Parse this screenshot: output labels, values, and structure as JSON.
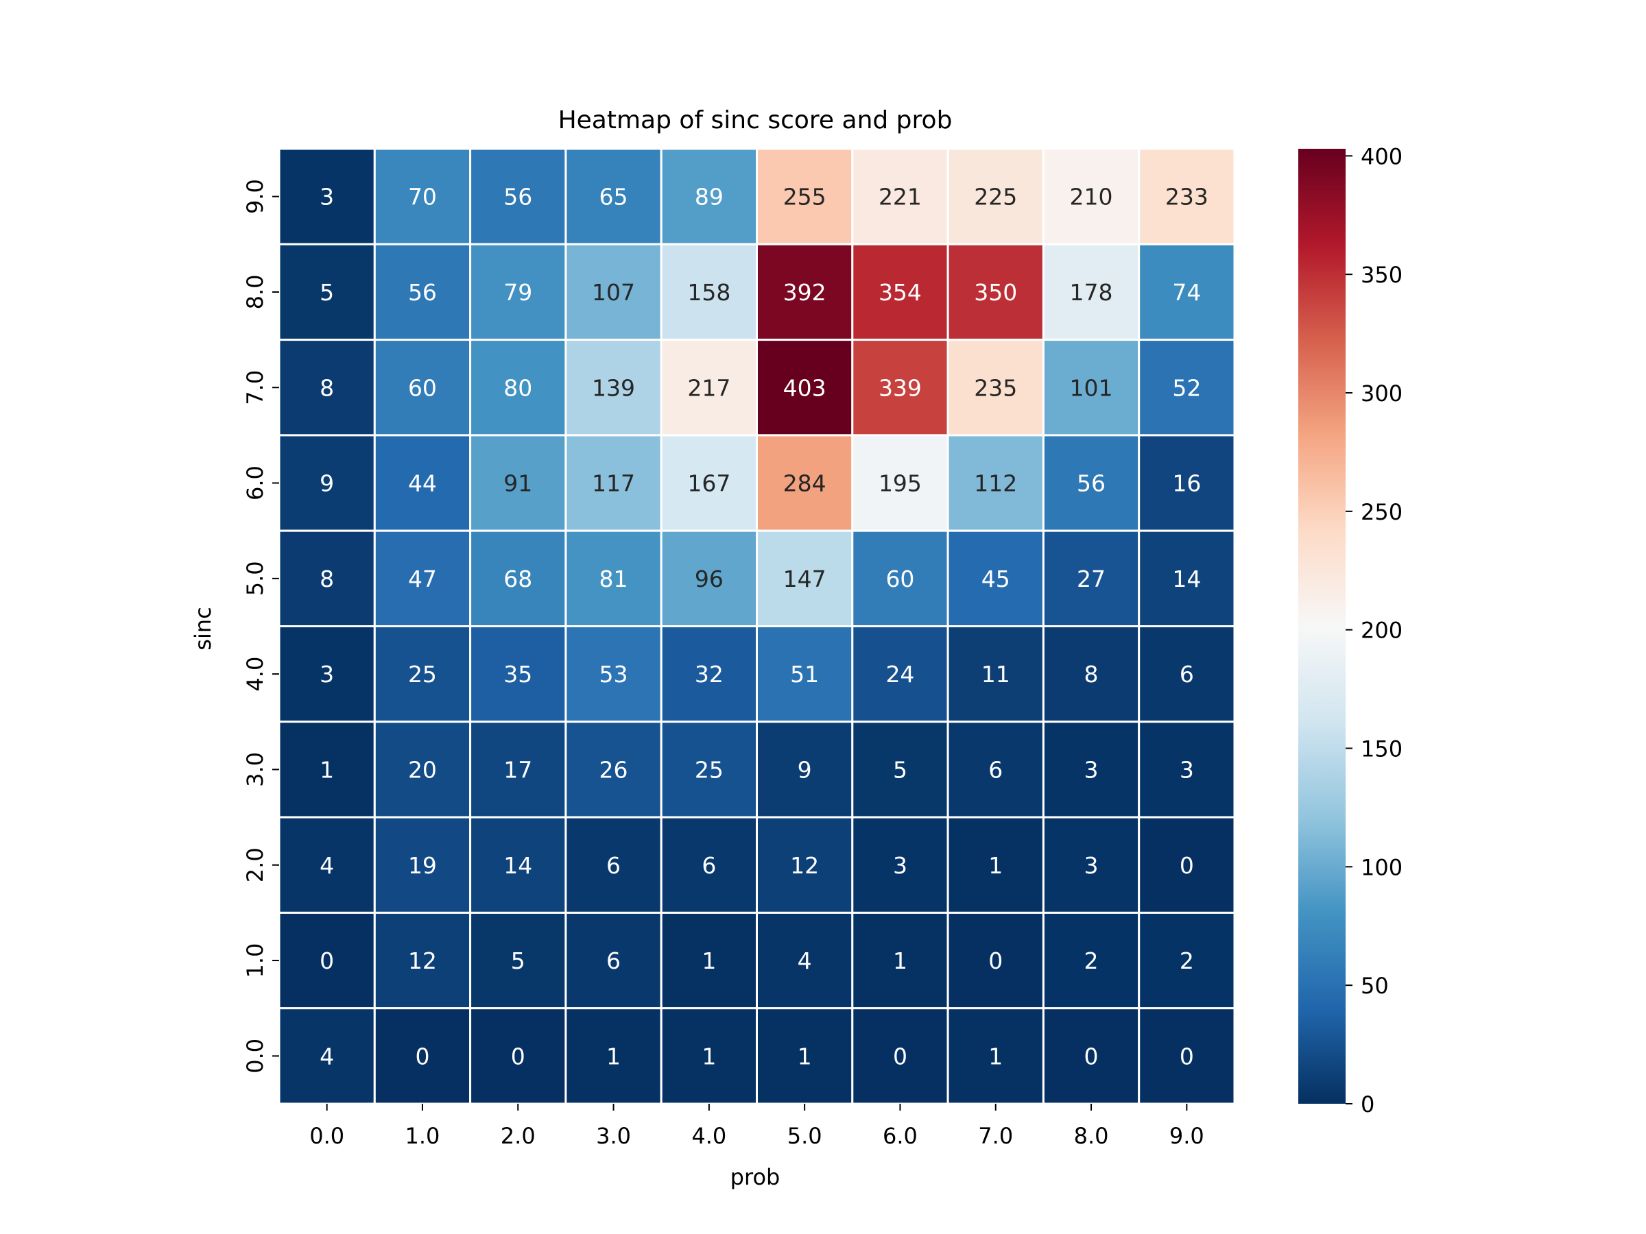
{
  "chart_data": {
    "type": "heatmap",
    "title": "Heatmap of sinc score and prob",
    "xlabel": "prob",
    "ylabel": "sinc",
    "x_categories": [
      "0.0",
      "1.0",
      "2.0",
      "3.0",
      "4.0",
      "5.0",
      "6.0",
      "7.0",
      "8.0",
      "9.0"
    ],
    "y_categories": [
      "9.0",
      "8.0",
      "7.0",
      "6.0",
      "5.0",
      "4.0",
      "3.0",
      "2.0",
      "1.0",
      "0.0"
    ],
    "values": [
      [
        3,
        70,
        56,
        65,
        89,
        255,
        221,
        225,
        210,
        233
      ],
      [
        5,
        56,
        79,
        107,
        158,
        392,
        354,
        350,
        178,
        74
      ],
      [
        8,
        60,
        80,
        139,
        217,
        403,
        339,
        235,
        101,
        52
      ],
      [
        9,
        44,
        91,
        117,
        167,
        284,
        195,
        112,
        56,
        16
      ],
      [
        8,
        47,
        68,
        81,
        96,
        147,
        60,
        45,
        27,
        14
      ],
      [
        3,
        25,
        35,
        53,
        32,
        51,
        24,
        11,
        8,
        6
      ],
      [
        1,
        20,
        17,
        26,
        25,
        9,
        5,
        6,
        3,
        3
      ],
      [
        4,
        19,
        14,
        6,
        6,
        12,
        3,
        1,
        3,
        0
      ],
      [
        0,
        12,
        5,
        6,
        1,
        4,
        1,
        0,
        2,
        2
      ],
      [
        4,
        0,
        0,
        1,
        1,
        1,
        0,
        1,
        0,
        0
      ]
    ],
    "colormap": "RdBu_r",
    "colormap_stops": [
      "#053061",
      "#2166ac",
      "#4393c3",
      "#92c5de",
      "#d1e5f0",
      "#f7f7f7",
      "#fddbc7",
      "#f4a582",
      "#d6604d",
      "#b2182b",
      "#67001f"
    ],
    "colorbar_ticks": [
      0,
      50,
      100,
      150,
      200,
      250,
      300,
      350,
      400
    ],
    "colorbar_range": [
      0,
      403
    ],
    "cell_border_color": "#ffffff",
    "annotations": true
  }
}
